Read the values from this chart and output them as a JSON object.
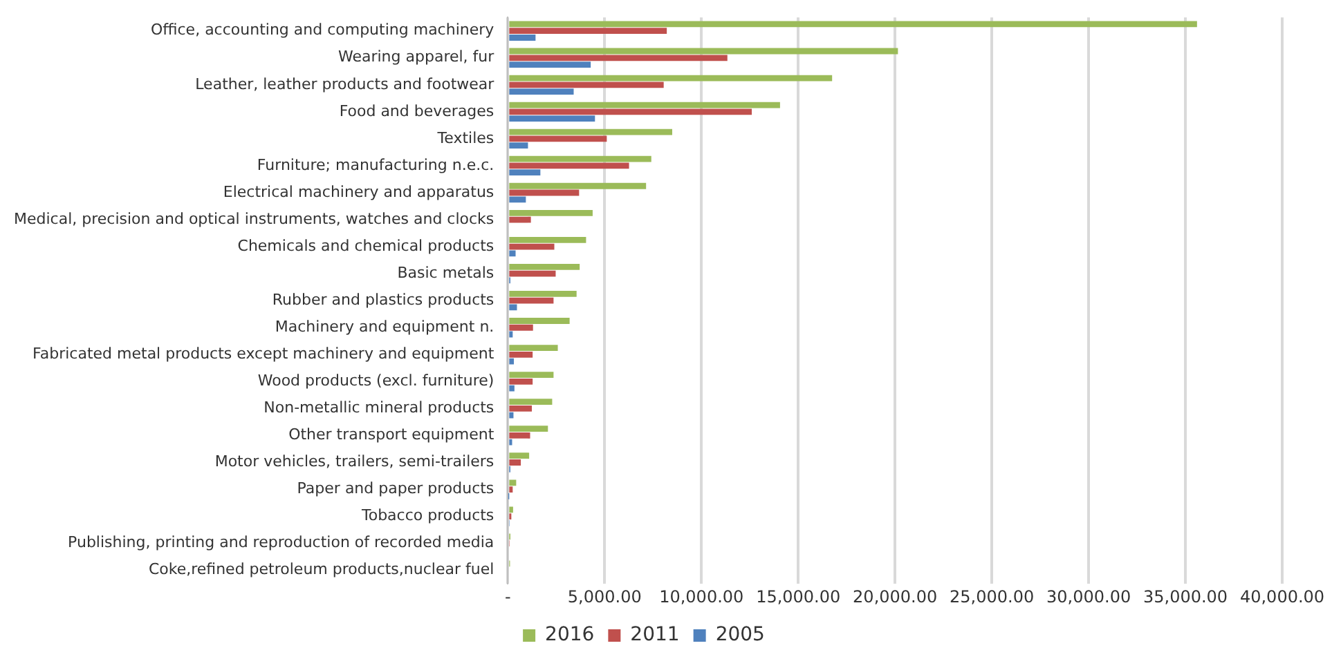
{
  "chart_data": {
    "type": "bar",
    "orientation": "horizontal",
    "categories": [
      "Office, accounting and computing machinery",
      "Wearing apparel, fur",
      "Leather, leather products and footwear",
      "Food and beverages",
      "Textiles",
      "Furniture; manufacturing n.e.c.",
      "Electrical machinery and apparatus",
      "Medical, precision and optical instruments, watches and clocks",
      "Chemicals and chemical products",
      "Basic metals",
      "Rubber and plastics products",
      "Machinery and equipment n.",
      "Fabricated metal products except machinery and equipment",
      "Wood products (excl. furniture)",
      "Non-metallic mineral products",
      "Other transport equipment",
      "Motor vehicles, trailers, semi-trailers",
      "Paper and paper products",
      "Tobacco products",
      "Publishing, printing and reproduction of recorded media",
      "Coke,refined petroleum products,nuclear fuel"
    ],
    "series": [
      {
        "name": "2016",
        "color": "#9bbb59",
        "values": [
          35600,
          20150,
          16750,
          14060,
          8490,
          7410,
          7140,
          4380,
          4040,
          3710,
          3550,
          3190,
          2580,
          2360,
          2290,
          2070,
          1100,
          430,
          270,
          130,
          110
        ]
      },
      {
        "name": "2011",
        "color": "#c0504d",
        "values": [
          8210,
          11340,
          8050,
          12600,
          5110,
          6260,
          3680,
          1190,
          2400,
          2470,
          2360,
          1300,
          1280,
          1280,
          1240,
          1150,
          670,
          250,
          180,
          90,
          null
        ]
      },
      {
        "name": "2005",
        "color": "#4f81bd",
        "values": [
          1430,
          4280,
          3400,
          4500,
          1040,
          1680,
          930,
          null,
          400,
          130,
          470,
          250,
          310,
          340,
          290,
          220,
          130,
          20,
          90,
          null,
          null
        ]
      }
    ],
    "xlim": [
      0,
      40000
    ],
    "xticks": [
      {
        "value": 0,
        "label": "-"
      },
      {
        "value": 5000,
        "label": "5,000.00"
      },
      {
        "value": 10000,
        "label": "10,000.00"
      },
      {
        "value": 15000,
        "label": "15,000.00"
      },
      {
        "value": 20000,
        "label": "20,000.00"
      },
      {
        "value": 25000,
        "label": "25,000.00"
      },
      {
        "value": 30000,
        "label": "30,000.00"
      },
      {
        "value": 35000,
        "label": "35,000.00"
      },
      {
        "value": 40000,
        "label": "40,000.00"
      }
    ],
    "grid": "x",
    "legend": "bottom"
  }
}
